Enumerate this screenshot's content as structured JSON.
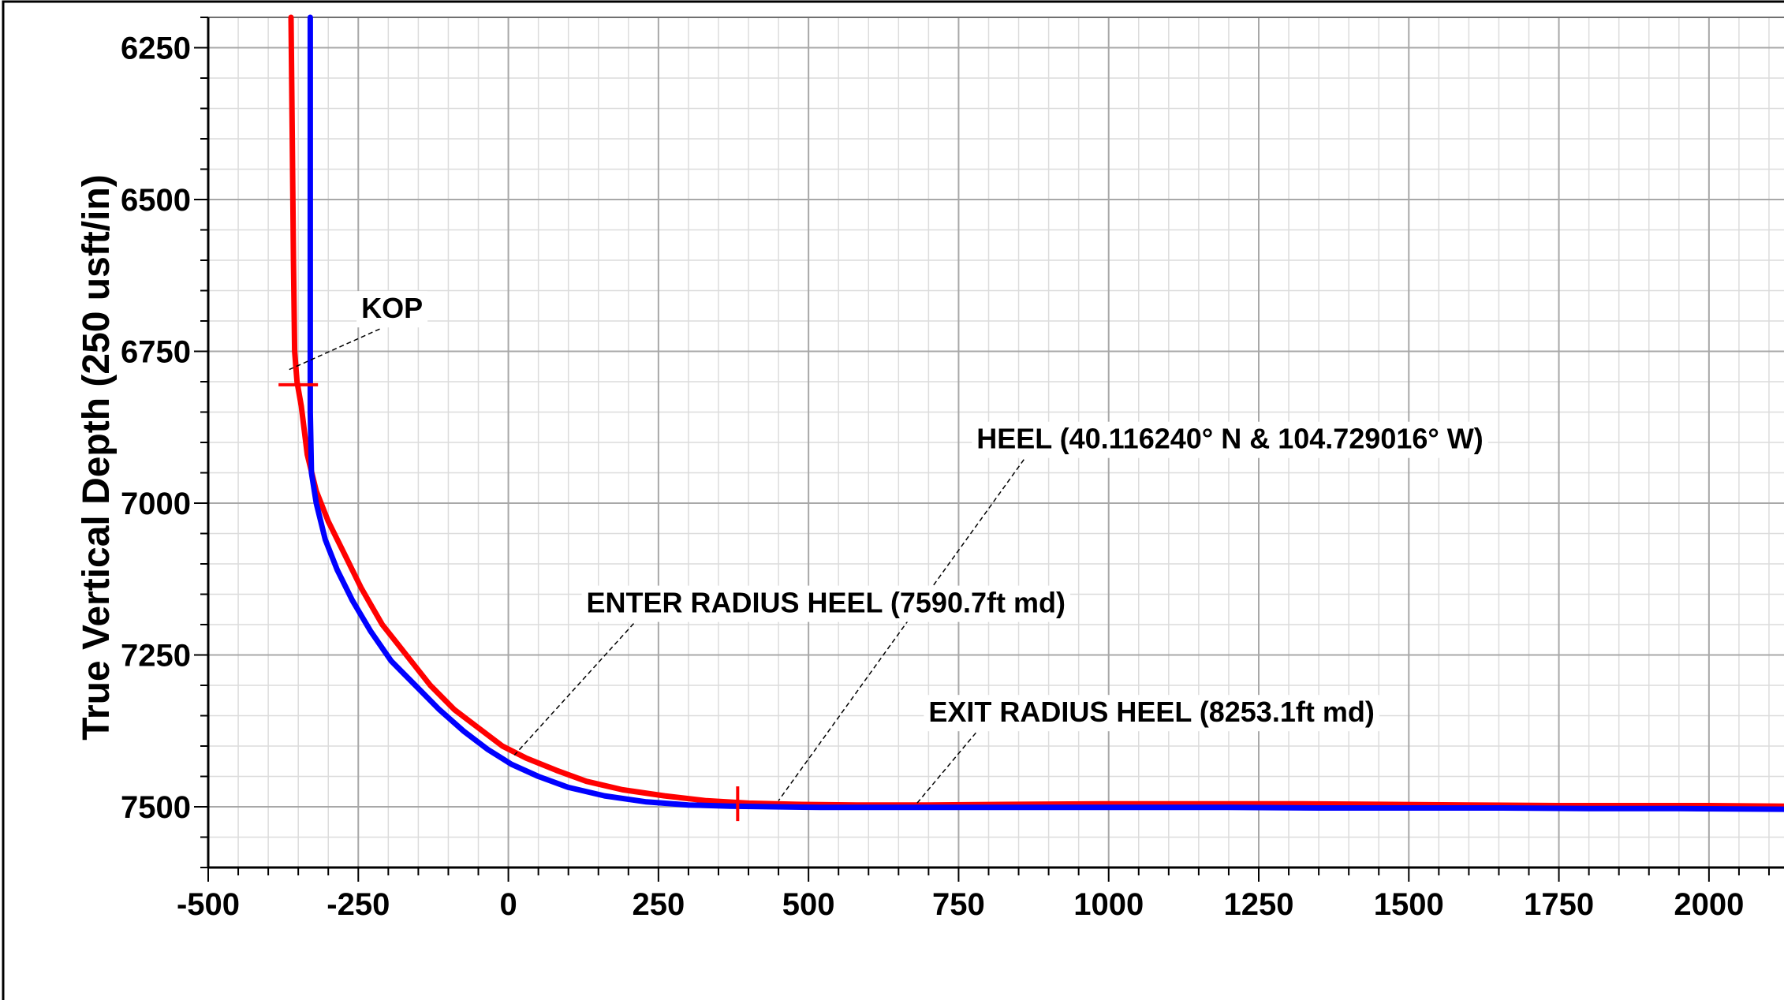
{
  "chart_data": {
    "type": "line",
    "title": "",
    "xlabel": "",
    "ylabel": "True Vertical Depth (250 usft/in)",
    "xlim": [
      -500,
      2125
    ],
    "ylim": [
      6200,
      7600
    ],
    "y_inverted": true,
    "grid": true,
    "x_ticks": [
      -500,
      -250,
      0,
      250,
      500,
      750,
      1000,
      1250,
      1500,
      1750,
      2000
    ],
    "y_ticks": [
      6250,
      6500,
      6750,
      7000,
      7250,
      7500
    ],
    "series": [
      {
        "color": "#ff0000",
        "x": [
          -362,
          -360,
          -358,
          -356,
          -352,
          -345,
          -335,
          -320,
          -300,
          -275,
          -245,
          -210,
          -170,
          -130,
          -90,
          -50,
          -10,
          30,
          80,
          130,
          190,
          260,
          330,
          400,
          480,
          580,
          700,
          850,
          1000,
          1150,
          1300,
          1450,
          1600,
          1750,
          1900,
          2000,
          2125
        ],
        "y": [
          6200,
          6400,
          6600,
          6750,
          6800,
          6840,
          6920,
          6980,
          7030,
          7080,
          7140,
          7200,
          7250,
          7300,
          7340,
          7370,
          7400,
          7420,
          7440,
          7458,
          7472,
          7482,
          7490,
          7494,
          7496,
          7497,
          7497,
          7496,
          7495,
          7495,
          7495,
          7496,
          7497,
          7498,
          7498,
          7498,
          7499
        ]
      },
      {
        "color": "#0000ff",
        "x": [
          -330,
          -330,
          -330,
          -330,
          -328,
          -320,
          -305,
          -285,
          -260,
          -230,
          -195,
          -155,
          -115,
          -75,
          -35,
          5,
          50,
          100,
          160,
          230,
          300,
          370,
          440,
          520,
          620,
          750,
          900,
          1050,
          1200,
          1350,
          1500,
          1650,
          1800,
          1950,
          2125
        ],
        "y": [
          6200,
          6500,
          6750,
          6850,
          6950,
          7000,
          7060,
          7110,
          7160,
          7210,
          7260,
          7300,
          7340,
          7375,
          7405,
          7430,
          7450,
          7468,
          7482,
          7492,
          7497,
          7499,
          7500,
          7501,
          7501,
          7501,
          7501,
          7501,
          7501,
          7502,
          7502,
          7502,
          7503,
          7503,
          7504
        ]
      }
    ],
    "markers": [
      {
        "x": -350,
        "y": 6805,
        "orient": "h",
        "color": "#ff0000"
      },
      {
        "x": 382,
        "y": 7495,
        "orient": "v",
        "color": "#ff0000"
      }
    ],
    "annotations": [
      {
        "text": "KOP",
        "x": -245,
        "y": 6695,
        "target_x": -365,
        "target_y": 6780
      },
      {
        "text": "HEEL (40.116240° N & 104.729016° W)",
        "x": 780,
        "y": 6910,
        "target_x": 450,
        "target_y": 7490
      },
      {
        "text": "ENTER RADIUS HEEL (7590.7ft md)",
        "x": 130,
        "y": 7180,
        "target_x": 10,
        "target_y": 7415
      },
      {
        "text": "EXIT RADIUS HEEL (8253.1ft md)",
        "x": 700,
        "y": 7360,
        "target_x": 680,
        "target_y": 7495
      }
    ]
  }
}
